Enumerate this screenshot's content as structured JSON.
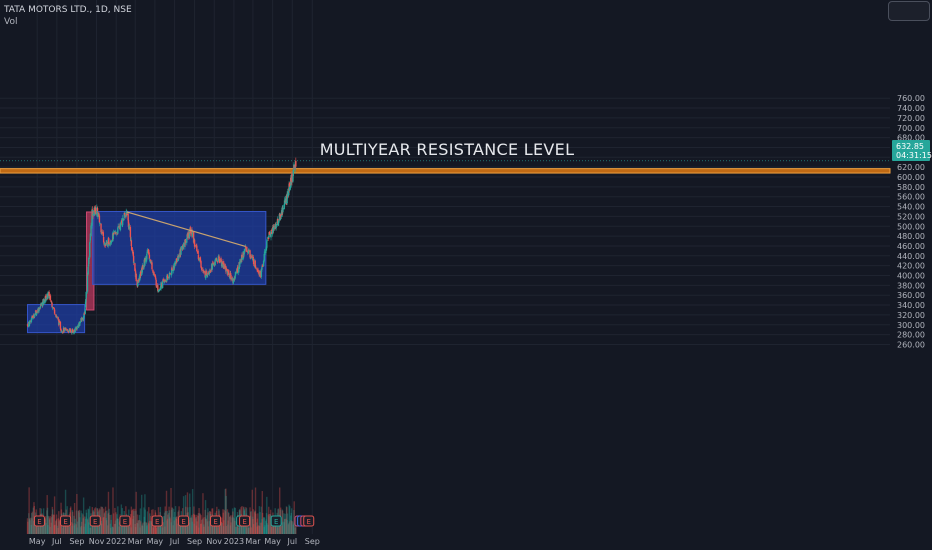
{
  "header": {
    "symbol_title": "TATA MOTORS LTD., 1D, NSE",
    "volume_label": "Vol"
  },
  "price_tag": {
    "price": "632.85",
    "countdown": "04:31:15"
  },
  "colors": {
    "background": "#141823",
    "grid": "#1f2430",
    "axis_text": "#b2b5be",
    "candle_up": "#26a69a",
    "candle_down": "#ef5350",
    "range_box": "#1e3fa8",
    "breakout_box": "#b9375e",
    "resistance_band": "#c06a14",
    "trendline": "#c8a26e",
    "price_tag_bg": "#26a69a"
  },
  "chart_data": {
    "type": "candlestick",
    "title": "",
    "x_ticks": [
      "May",
      "Jul",
      "Sep",
      "Nov",
      "2022",
      "Mar",
      "May",
      "Jul",
      "Sep",
      "Nov",
      "2023",
      "Mar",
      "May",
      "Jul",
      "Sep"
    ],
    "y_ticks": [
      "260.00",
      "280.00",
      "300.00",
      "320.00",
      "340.00",
      "360.00",
      "380.00",
      "400.00",
      "420.00",
      "440.00",
      "460.00",
      "480.00",
      "500.00",
      "520.00",
      "540.00",
      "560.00",
      "580.00",
      "600.00",
      "620.00",
      "640.00",
      "660.00",
      "680.00",
      "700.00",
      "720.00",
      "740.00",
      "760.00"
    ],
    "y_range": [
      251,
      775
    ],
    "annotations": [
      {
        "type": "text",
        "text": "MULTIYEAR RESISTANCE LEVEL"
      },
      {
        "type": "zone",
        "name": "resistance band",
        "y_low": 608,
        "y_high": 617
      },
      {
        "type": "range_box",
        "start": "2021-04-01",
        "end": "2021-09-25",
        "y_low": 284,
        "y_high": 341
      },
      {
        "type": "breakout_box",
        "start": "2021-10-01",
        "end": "2021-10-24",
        "y_low": 330,
        "y_high": 529
      },
      {
        "type": "range_box",
        "start": "2021-10-20",
        "end": "2023-04-10",
        "y_low": 382,
        "y_high": 530
      },
      {
        "type": "trendline",
        "from": {
          "date": "2022-02-03",
          "price": 529
        },
        "to": {
          "date": "2023-02-06",
          "price": 459
        }
      }
    ],
    "event_markers": [
      "E",
      "E",
      "E",
      "E",
      "E",
      "E",
      "E",
      "E",
      "E",
      "E",
      "E",
      "E",
      "D",
      "E"
    ],
    "key_points": [
      {
        "date": "2021-04-01",
        "price": 300
      },
      {
        "date": "2021-06-05",
        "price": 362
      },
      {
        "date": "2021-07-15",
        "price": 290
      },
      {
        "date": "2021-08-25",
        "price": 287
      },
      {
        "date": "2021-09-25",
        "price": 320
      },
      {
        "date": "2021-10-18",
        "price": 525
      },
      {
        "date": "2021-11-01",
        "price": 535
      },
      {
        "date": "2021-11-28",
        "price": 460
      },
      {
        "date": "2022-01-05",
        "price": 490
      },
      {
        "date": "2022-02-03",
        "price": 529
      },
      {
        "date": "2022-03-07",
        "price": 380
      },
      {
        "date": "2022-04-10",
        "price": 450
      },
      {
        "date": "2022-05-10",
        "price": 372
      },
      {
        "date": "2022-06-15",
        "price": 400
      },
      {
        "date": "2022-08-20",
        "price": 493
      },
      {
        "date": "2022-10-01",
        "price": 400
      },
      {
        "date": "2022-11-15",
        "price": 435
      },
      {
        "date": "2022-12-30",
        "price": 390
      },
      {
        "date": "2023-01-31",
        "price": 445
      },
      {
        "date": "2023-02-10",
        "price": 455
      },
      {
        "date": "2023-03-25",
        "price": 402
      },
      {
        "date": "2023-04-18",
        "price": 480
      },
      {
        "date": "2023-05-20",
        "price": 512
      },
      {
        "date": "2023-06-15",
        "price": 560
      },
      {
        "date": "2023-07-12",
        "price": 630
      }
    ],
    "last_price": 632.85
  }
}
